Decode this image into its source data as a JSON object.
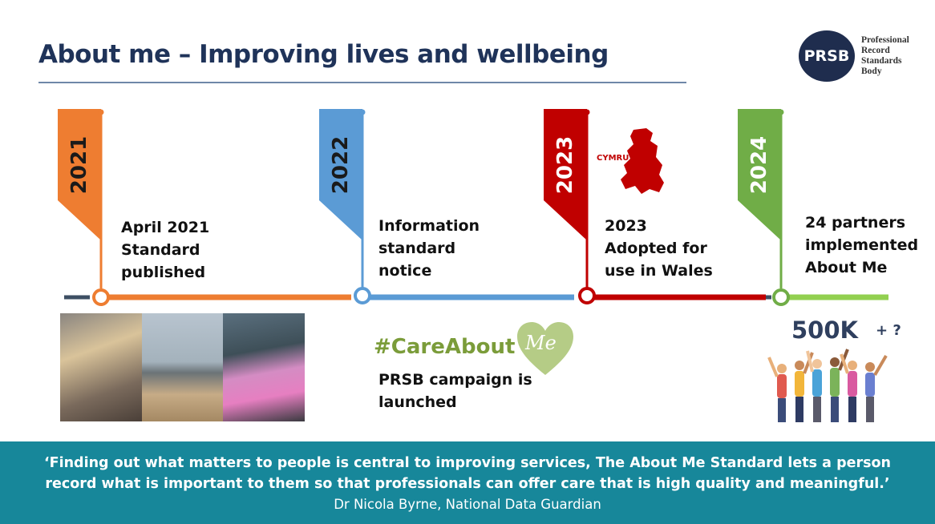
{
  "header": {
    "title": "About me – Improving lives and wellbeing"
  },
  "logo": {
    "acronym": "PRSB",
    "lines": [
      "Professional",
      "Record",
      "Standards",
      "Body"
    ]
  },
  "timeline": [
    {
      "year": "2021",
      "color": "#ee7d31",
      "milestone_lines": [
        "April 2021",
        "Standard",
        "published"
      ]
    },
    {
      "year": "2022",
      "color": "#5b9bd5",
      "milestone_lines": [
        "Information",
        "standard",
        "notice"
      ]
    },
    {
      "year": "2023",
      "color": "#c00000",
      "milestone_lines": [
        "2023",
        "Adopted for",
        "use in Wales"
      ]
    },
    {
      "year": "2024",
      "color": "#70ad47",
      "milestone_lines": [
        "24 partners",
        "implemented",
        "About Me"
      ]
    }
  ],
  "wales_label": "CYMRU",
  "campaign": {
    "hashtag": "#CareAbout",
    "heart_text": "Me",
    "heart_color": "#b5cc86",
    "caption_lines": [
      "PRSB campaign is",
      "launched"
    ]
  },
  "stat": {
    "value": "500K",
    "suffix": "+ ?"
  },
  "quote": {
    "text": "‘Finding out what matters to people is central to improving services, The About Me Standard lets a person record what is important to them so that professionals can offer care that is high quality and meaningful.’",
    "author": "Dr Nicola Byrne, National Data Guardian"
  },
  "colors": {
    "title": "#1f3359",
    "quote_band": "#17879a",
    "logo": "#1f2d4e"
  }
}
